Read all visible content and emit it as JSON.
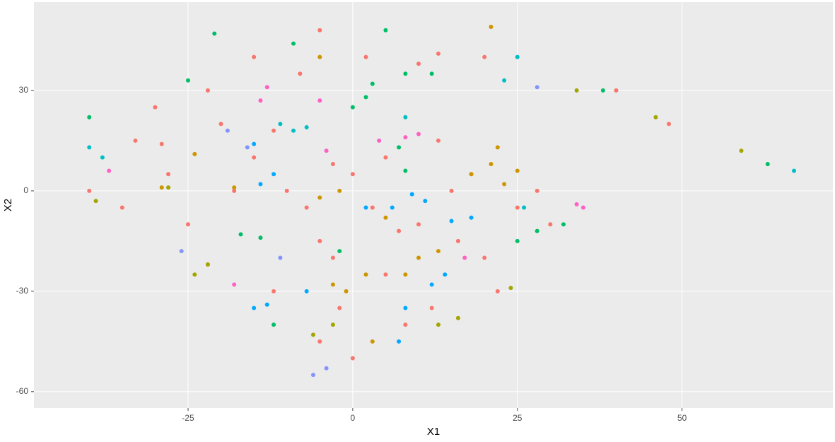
{
  "chart_data": {
    "type": "scatter",
    "xlabel": "X1",
    "ylabel": "X2",
    "xlim": [
      -48.4,
      72.9
    ],
    "ylim": [
      -64.9,
      56.4
    ],
    "xticks": [
      -25,
      0,
      25,
      50
    ],
    "yticks": [
      -60,
      -30,
      0,
      30
    ],
    "grid": true,
    "series": [
      {
        "color": "#F8766D",
        "x": [
          0,
          -3,
          3,
          -5,
          10,
          15,
          18,
          -10,
          -15,
          -20,
          -30,
          -35,
          -40,
          -25,
          5,
          -2,
          8,
          20,
          25,
          30,
          -8,
          -15,
          -5,
          10,
          20,
          40,
          48,
          -22,
          -12,
          0,
          -5,
          12,
          -18,
          -28,
          -33,
          5,
          13,
          22,
          28,
          -3,
          2,
          -12,
          7,
          16,
          -7,
          -29,
          13
        ],
        "values": [
          5,
          8,
          -5,
          -15,
          -10,
          0,
          5,
          0,
          10,
          20,
          25,
          -5,
          0,
          -10,
          -25,
          -35,
          -40,
          -20,
          -5,
          -10,
          35,
          40,
          48,
          38,
          40,
          30,
          20,
          30,
          -30,
          -50,
          -45,
          -35,
          0,
          5,
          15,
          10,
          15,
          -30,
          0,
          -20,
          40,
          18,
          -12,
          -15,
          -5,
          14,
          41
        ]
      },
      {
        "color": "#CD9600",
        "x": [
          21,
          22,
          18,
          23,
          25,
          -3,
          -1,
          2,
          -5,
          -2,
          10,
          8,
          13,
          5,
          -24,
          -22,
          -5,
          21,
          -29,
          -18,
          3
        ],
        "values": [
          8,
          13,
          5,
          2,
          6,
          -28,
          -30,
          -25,
          -2,
          0,
          -20,
          -25,
          -18,
          -8,
          11,
          -22,
          40,
          49,
          1,
          1,
          -45
        ]
      },
      {
        "color": "#A3A500",
        "x": [
          -39,
          -28,
          24,
          -22,
          -24,
          16,
          13,
          34,
          46,
          59,
          -6,
          -3
        ],
        "values": [
          -3,
          1,
          -29,
          -22,
          -25,
          -38,
          -40,
          30,
          22,
          12,
          -43,
          -40
        ]
      },
      {
        "color": "#00BE67",
        "x": [
          -40,
          -25,
          -21,
          -9,
          5,
          2,
          0,
          3,
          8,
          12,
          -17,
          -14,
          7,
          8,
          -2,
          25,
          28,
          32,
          -12,
          63,
          38
        ],
        "values": [
          22,
          33,
          47,
          44,
          48,
          28,
          25,
          32,
          35,
          35,
          -13,
          -14,
          13,
          6,
          -18,
          -15,
          -12,
          -10,
          -40,
          8,
          30
        ]
      },
      {
        "color": "#00BFC4",
        "x": [
          -11,
          -9,
          -7,
          25,
          23,
          8,
          -40,
          -38,
          67,
          26
        ],
        "values": [
          20,
          18,
          19,
          40,
          33,
          22,
          13,
          10,
          6,
          -5
        ]
      },
      {
        "color": "#00A9FF",
        "x": [
          2,
          6,
          9,
          11,
          -12,
          -14,
          -15,
          -13,
          8,
          12,
          14,
          7,
          15,
          18,
          -7,
          -15
        ],
        "values": [
          -5,
          -5,
          -1,
          -3,
          5,
          2,
          -35,
          -34,
          -35,
          -28,
          -25,
          -45,
          -9,
          -8,
          -30,
          14
        ]
      },
      {
        "color": "#8494FF",
        "x": [
          -19,
          -16,
          28,
          -26,
          -6,
          -4,
          -11
        ],
        "values": [
          18,
          13,
          31,
          -18,
          -55,
          -53,
          -20
        ]
      },
      {
        "color": "#FF61C3",
        "x": [
          10,
          8,
          -14,
          -13,
          -5,
          -4,
          35,
          34,
          -37,
          4,
          -18,
          17
        ],
        "values": [
          17,
          16,
          27,
          31,
          27,
          12,
          -5,
          -4,
          6,
          15,
          -28,
          -20
        ]
      }
    ]
  }
}
